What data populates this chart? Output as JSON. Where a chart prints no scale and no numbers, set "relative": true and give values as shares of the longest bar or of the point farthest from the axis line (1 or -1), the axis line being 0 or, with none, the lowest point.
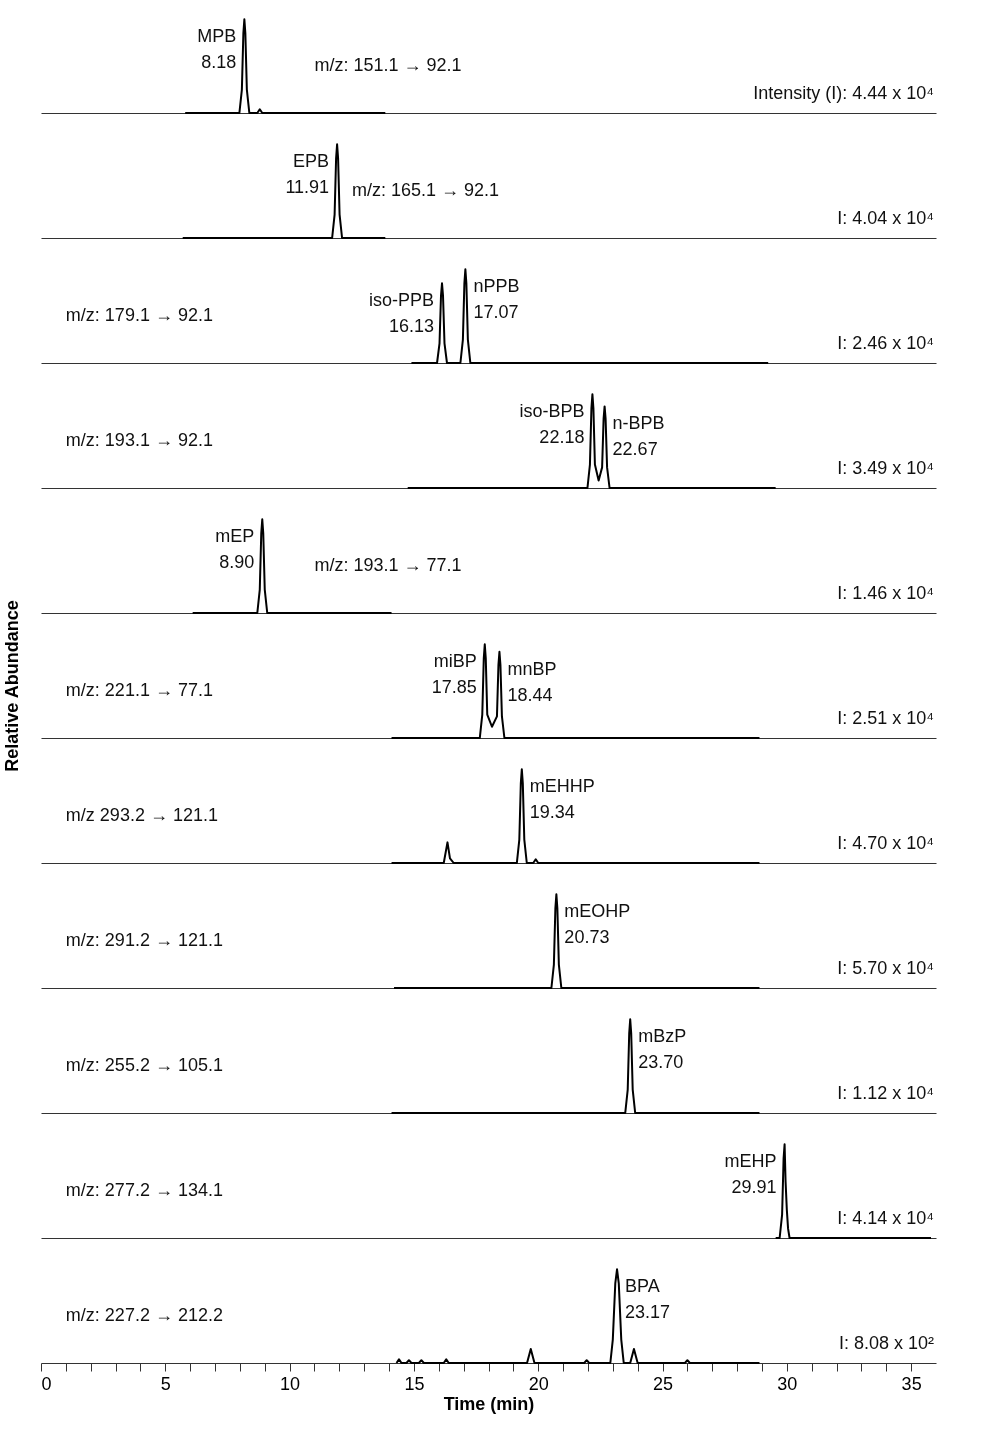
{
  "chart_data": [
    {
      "type": "line",
      "relative": true,
      "xlim": [
        0,
        36
      ],
      "tick_labels": false,
      "series": [
        {
          "color": "#000000",
          "x": [
            5.8,
            7.98,
            8.08,
            8.14,
            8.18,
            8.22,
            8.28,
            8.38,
            8.7,
            8.8,
            8.9,
            13.85
          ],
          "values": [
            0,
            0,
            0.25,
            0.85,
            1,
            0.85,
            0.25,
            0,
            0,
            0.04,
            0,
            0
          ]
        }
      ],
      "annotations": [
        "m/z: 151.1 → 92.1",
        "Intensity (I): 4.44 x 10⁴",
        {
          "text": "MPB",
          "x": 8.18,
          "y": 1
        },
        {
          "text": "8.18",
          "x": 8.18,
          "y": 1
        }
      ]
    },
    {
      "type": "line",
      "relative": true,
      "xlim": [
        0,
        36
      ],
      "tick_labels": false,
      "series": [
        {
          "color": "#000000",
          "x": [
            5.7,
            11.71,
            11.81,
            11.87,
            11.91,
            11.95,
            12.01,
            12.11,
            13.85
          ],
          "values": [
            0,
            0,
            0.25,
            0.85,
            1,
            0.85,
            0.25,
            0,
            0
          ]
        }
      ],
      "annotations": [
        "m/z: 165.1 → 92.1",
        "I: 4.04 x 10⁴",
        {
          "text": "EPB",
          "x": 11.91,
          "y": 1
        },
        {
          "text": "11.91",
          "x": 11.91,
          "y": 1
        }
      ]
    },
    {
      "type": "line",
      "relative": true,
      "xlim": [
        0,
        36
      ],
      "tick_labels": false,
      "series": [
        {
          "color": "#000000",
          "x": [
            14.9,
            15.93,
            16.03,
            16.09,
            16.13,
            16.17,
            16.23,
            16.33,
            16.87,
            16.97,
            17.03,
            17.07,
            17.11,
            17.17,
            17.27,
            29.25
          ],
          "values": [
            0,
            0,
            0.21,
            0.72,
            0.85,
            0.72,
            0.21,
            0,
            0,
            0.25,
            0.85,
            1,
            0.85,
            0.25,
            0,
            0
          ]
        }
      ],
      "annotations": [
        "m/z: 179.1 → 92.1",
        "I: 2.46 x 10⁴",
        {
          "text": "iso-PPB",
          "x": 16.13,
          "y": 0.85
        },
        {
          "text": "16.13",
          "x": 16.13,
          "y": 0.85
        },
        {
          "text": "nPPB",
          "x": 17.07,
          "y": 1
        },
        {
          "text": "17.07",
          "x": 17.07,
          "y": 1
        }
      ]
    },
    {
      "type": "line",
      "relative": true,
      "xlim": [
        0,
        36
      ],
      "tick_labels": false,
      "series": [
        {
          "color": "#000000",
          "x": [
            14.75,
            21.98,
            22.08,
            22.14,
            22.18,
            22.22,
            22.28,
            22.43,
            22.57,
            22.63,
            22.67,
            22.71,
            22.77,
            22.87,
            29.55
          ],
          "values": [
            0,
            0,
            0.25,
            0.85,
            1,
            0.85,
            0.25,
            0.08,
            0.22,
            0.74,
            0.87,
            0.74,
            0.22,
            0,
            0
          ]
        }
      ],
      "annotations": [
        "m/z: 193.1 → 92.1",
        "I: 3.49 x 10⁴",
        {
          "text": "iso-BPB",
          "x": 22.18,
          "y": 1
        },
        {
          "text": "22.18",
          "x": 22.18,
          "y": 1
        },
        {
          "text": "n-BPB",
          "x": 22.67,
          "y": 0.87
        },
        {
          "text": "22.67",
          "x": 22.67,
          "y": 0.87
        }
      ]
    },
    {
      "type": "line",
      "relative": true,
      "xlim": [
        0,
        36
      ],
      "tick_labels": false,
      "series": [
        {
          "color": "#000000",
          "x": [
            6.1,
            8.7,
            8.8,
            8.86,
            8.9,
            8.94,
            9.0,
            9.1,
            14.1
          ],
          "values": [
            0,
            0,
            0.25,
            0.85,
            1,
            0.85,
            0.25,
            0,
            0
          ]
        }
      ],
      "annotations": [
        "m/z: 193.1 → 77.1",
        "I: 1.46 x 10⁴",
        {
          "text": "mEP",
          "x": 8.9,
          "y": 1
        },
        {
          "text": "8.90",
          "x": 8.9,
          "y": 1
        }
      ]
    },
    {
      "type": "line",
      "relative": true,
      "xlim": [
        0,
        36
      ],
      "tick_labels": false,
      "ylabel": "Relative Abundance",
      "series": [
        {
          "color": "#000000",
          "x": [
            14.1,
            17.65,
            17.75,
            17.81,
            17.85,
            17.89,
            17.95,
            18.14,
            18.34,
            18.4,
            18.44,
            18.48,
            18.54,
            18.64,
            28.9
          ],
          "values": [
            0,
            0,
            0.25,
            0.85,
            1,
            0.85,
            0.25,
            0.12,
            0.23,
            0.78,
            0.92,
            0.78,
            0.23,
            0,
            0
          ]
        }
      ],
      "annotations": [
        "m/z: 221.1 → 77.1",
        "I: 2.51 x 10⁴",
        {
          "text": "miBP",
          "x": 17.85,
          "y": 1
        },
        {
          "text": "17.85",
          "x": 17.85,
          "y": 1
        },
        {
          "text": "mnBP",
          "x": 18.44,
          "y": 0.92
        },
        {
          "text": "18.44",
          "x": 18.44,
          "y": 0.92
        }
      ]
    },
    {
      "type": "line",
      "relative": true,
      "xlim": [
        0,
        36
      ],
      "tick_labels": false,
      "series": [
        {
          "color": "#000000",
          "x": [
            14.1,
            16.2,
            16.35,
            16.45,
            16.6,
            19.14,
            19.24,
            19.3,
            19.34,
            19.38,
            19.44,
            19.54,
            19.8,
            19.9,
            20.0,
            28.9
          ],
          "values": [
            0,
            0,
            0.22,
            0.05,
            0,
            0,
            0.25,
            0.85,
            1,
            0.85,
            0.25,
            0,
            0,
            0.04,
            0,
            0
          ]
        }
      ],
      "annotations": [
        "m/z 293.2 → 121.1",
        "I: 4.70 x 10⁴",
        {
          "text": "mEHHP",
          "x": 19.34,
          "y": 1
        },
        {
          "text": "19.34",
          "x": 19.34,
          "y": 1
        }
      ]
    },
    {
      "type": "line",
      "relative": true,
      "xlim": [
        0,
        36
      ],
      "tick_labels": false,
      "series": [
        {
          "color": "#000000",
          "x": [
            14.2,
            20.53,
            20.63,
            20.69,
            20.73,
            20.77,
            20.83,
            20.93,
            28.9
          ],
          "values": [
            0,
            0,
            0.25,
            0.85,
            1,
            0.85,
            0.25,
            0,
            0
          ]
        }
      ],
      "annotations": [
        "m/z: 291.2 → 121.1",
        "I: 5.70 x 10⁴",
        {
          "text": "mEOHP",
          "x": 20.73,
          "y": 1
        },
        {
          "text": "20.73",
          "x": 20.73,
          "y": 1
        }
      ]
    },
    {
      "type": "line",
      "relative": true,
      "xlim": [
        0,
        36
      ],
      "tick_labels": false,
      "series": [
        {
          "color": "#000000",
          "x": [
            14.1,
            23.5,
            23.6,
            23.66,
            23.7,
            23.74,
            23.8,
            23.9,
            28.9
          ],
          "values": [
            0,
            0,
            0.25,
            0.85,
            1,
            0.85,
            0.25,
            0,
            0
          ]
        }
      ],
      "annotations": [
        "m/z: 255.2 → 105.1",
        "I: 1.12 x 10⁴",
        {
          "text": "mBzP",
          "x": 23.7,
          "y": 1
        },
        {
          "text": "23.70",
          "x": 23.7,
          "y": 1
        }
      ]
    },
    {
      "type": "line",
      "relative": true,
      "xlim": [
        0,
        36
      ],
      "tick_labels": false,
      "series": [
        {
          "color": "#000000",
          "x": [
            29.55,
            29.71,
            29.81,
            29.87,
            29.91,
            29.95,
            30.0,
            30.05,
            30.11,
            35.8
          ],
          "values": [
            0,
            0,
            0.25,
            0.85,
            1,
            0.6,
            0.3,
            0.1,
            0,
            0
          ]
        }
      ],
      "annotations": [
        "m/z: 277.2 → 134.1",
        "I: 4.14 x 10⁴",
        {
          "text": "mEHP",
          "x": 29.91,
          "y": 1
        },
        {
          "text": "29.91",
          "x": 29.91,
          "y": 1
        }
      ]
    },
    {
      "type": "line",
      "relative": true,
      "xlim": [
        0,
        36
      ],
      "xlabel": "Time (min)",
      "xticks": [
        0,
        {
          "value": 1,
          "label": null
        },
        {
          "value": 2,
          "label": null
        },
        {
          "value": 3,
          "label": null
        },
        {
          "value": 4,
          "label": null
        },
        5,
        {
          "value": 6,
          "label": null
        },
        {
          "value": 7,
          "label": null
        },
        {
          "value": 8,
          "label": null
        },
        {
          "value": 9,
          "label": null
        },
        10,
        {
          "value": 11,
          "label": null
        },
        {
          "value": 12,
          "label": null
        },
        {
          "value": 13,
          "label": null
        },
        {
          "value": 14,
          "label": null
        },
        15,
        {
          "value": 16,
          "label": null
        },
        {
          "value": 17,
          "label": null
        },
        {
          "value": 18,
          "label": null
        },
        {
          "value": 19,
          "label": null
        },
        20,
        {
          "value": 21,
          "label": null
        },
        {
          "value": 22,
          "label": null
        },
        {
          "value": 23,
          "label": null
        },
        {
          "value": 24,
          "label": null
        },
        25,
        {
          "value": 26,
          "label": null
        },
        {
          "value": 27,
          "label": null
        },
        {
          "value": 28,
          "label": null
        },
        {
          "value": 29,
          "label": null
        },
        30,
        {
          "value": 31,
          "label": null
        },
        {
          "value": 32,
          "label": null
        },
        {
          "value": 33,
          "label": null
        },
        {
          "value": 34,
          "label": null
        },
        35
      ],
      "series": [
        {
          "color": "#000000",
          "x": [
            14.3,
            14.4,
            14.5,
            14.7,
            14.8,
            14.9,
            15.2,
            15.3,
            15.4,
            16.2,
            16.3,
            16.4,
            19.55,
            19.7,
            19.85,
            21.85,
            21.95,
            22.05,
            22.9,
            23.0,
            23.1,
            23.17,
            23.24,
            23.34,
            23.44,
            23.7,
            23.85,
            24.0,
            25.9,
            26.0,
            26.1,
            28.9
          ],
          "values": [
            0,
            0.04,
            0,
            0,
            0.03,
            0,
            0,
            0.03,
            0,
            0,
            0.04,
            0,
            0,
            0.15,
            0,
            0,
            0.03,
            0,
            0,
            0.25,
            0.85,
            1,
            0.85,
            0.25,
            0,
            0,
            0.15,
            0,
            0,
            0.03,
            0,
            0
          ]
        }
      ],
      "annotations": [
        "m/z: 227.2 → 212.2",
        "I: 8.08 x 10²",
        {
          "text": "BPA",
          "x": 23.17,
          "y": 1
        },
        {
          "text": "23.17",
          "x": 23.17,
          "y": 1
        }
      ]
    }
  ]
}
